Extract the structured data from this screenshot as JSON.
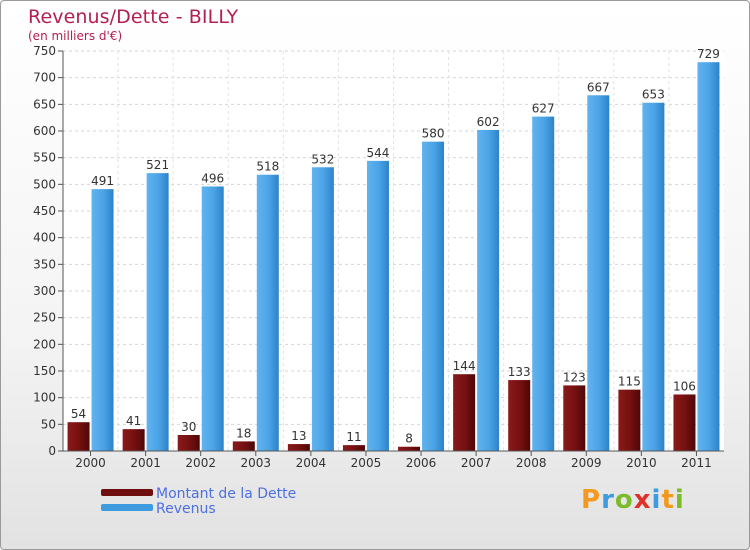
{
  "title": "Revenus/Dette - BILLY",
  "subtitle": "(en milliers d'€)",
  "legend": {
    "debt_label": "Montant de la Dette",
    "revenue_label": "Revenus"
  },
  "logo": [
    "P",
    "r",
    "o",
    "x",
    "i",
    "t",
    "i"
  ],
  "colors": {
    "debt": "#6e0e0e",
    "revenue": "#3d9be0",
    "title": "#b3204f",
    "legend_text": "#4d6fe0"
  },
  "chart_data": {
    "type": "bar",
    "categories": [
      "2000",
      "2001",
      "2002",
      "2003",
      "2004",
      "2005",
      "2006",
      "2007",
      "2008",
      "2009",
      "2010",
      "2011"
    ],
    "series": [
      {
        "name": "Montant de la Dette",
        "values": [
          54,
          41,
          30,
          18,
          13,
          11,
          8,
          144,
          133,
          123,
          115,
          106
        ]
      },
      {
        "name": "Revenus",
        "values": [
          491,
          521,
          496,
          518,
          532,
          544,
          580,
          602,
          627,
          667,
          653,
          729
        ]
      }
    ],
    "yticks": [
      0,
      50,
      100,
      150,
      200,
      250,
      300,
      350,
      400,
      450,
      500,
      550,
      600,
      650,
      700,
      750
    ],
    "ylim": [
      0,
      750
    ],
    "grid": true,
    "legend_position": "bottom-left"
  }
}
